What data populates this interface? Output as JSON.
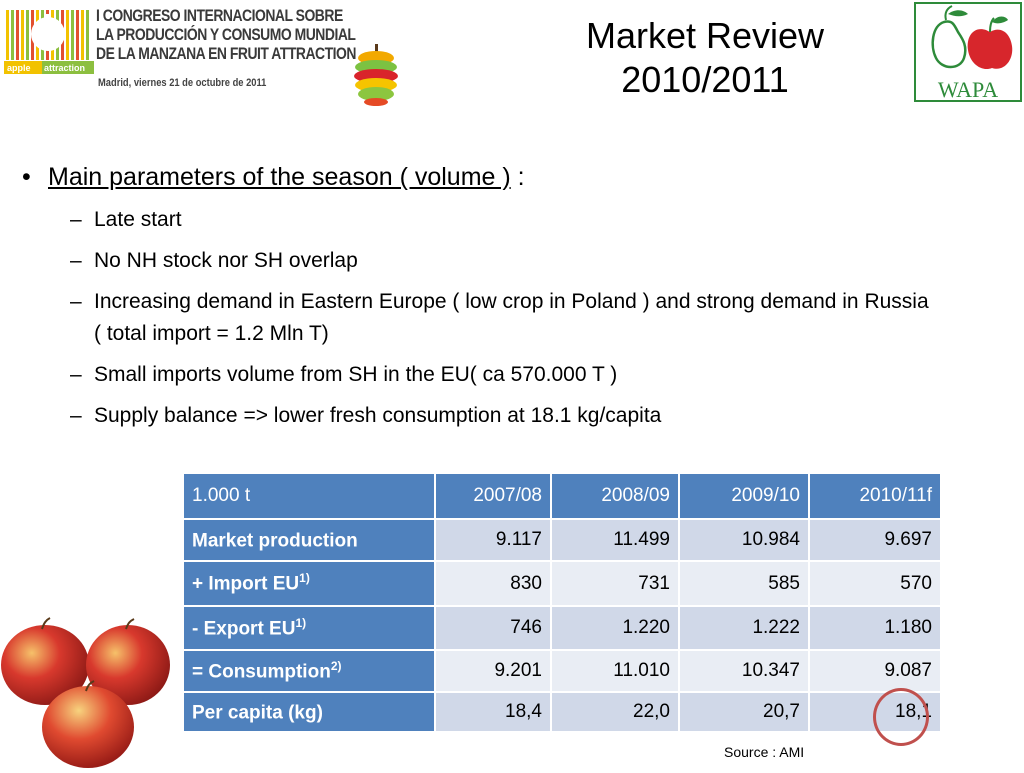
{
  "header": {
    "logo_text": "apple attraction",
    "congress_line1": "I CONGRESO INTERNACIONAL SOBRE",
    "congress_line2": "LA PRODUCCIÓN Y CONSUMO MUNDIAL",
    "congress_line3": "DE LA MANZANA EN FRUIT ATTRACTION",
    "congress_date": "Madrid, viernes 21 de octubre de 2011",
    "title_line1": "Market Review",
    "title_line2": "2010/2011",
    "wapa_text": "WAPA"
  },
  "content": {
    "bullet_main": "Main parameters of the season  ( volume )",
    "bullet_main_suffix": "  :",
    "sub_bullets": [
      "Late start",
      "No NH stock nor  SH overlap",
      "Increasing demand in Eastern Europe ( low crop in Poland )  and strong demand in Russia ( total import  = 1.2 Mln  T)",
      "Small imports volume from SH  in the EU( ca 570.000 T )",
      "Supply balance => lower fresh consumption at 18.1 kg/capita"
    ]
  },
  "table": {
    "header": [
      "1.000 t",
      "2007/08",
      "2008/09",
      "2009/10",
      "2010/11f"
    ],
    "rows": [
      {
        "label": "Market production",
        "sup": "",
        "values": [
          "9.117",
          "11.499",
          "10.984",
          "9.697"
        ]
      },
      {
        "label": "+ Import EU",
        "sup": "1)",
        "values": [
          "830",
          "731",
          "585",
          "570"
        ]
      },
      {
        "label": "-  Export EU",
        "sup": "1)",
        "values": [
          "746",
          "1.220",
          "1.222",
          "1.180"
        ]
      },
      {
        "label": "= Consumption",
        "sup": "2)",
        "values": [
          "9.201",
          "11.010",
          "10.347",
          "9.087"
        ]
      },
      {
        "label": "Per capita (kg)",
        "sup": "",
        "values": [
          "18,4",
          "22,0",
          "20,7",
          "18,1"
        ]
      }
    ],
    "source": "Source : AMI",
    "highlight_color": "#c0504d",
    "header_color": "#4f81bd"
  }
}
